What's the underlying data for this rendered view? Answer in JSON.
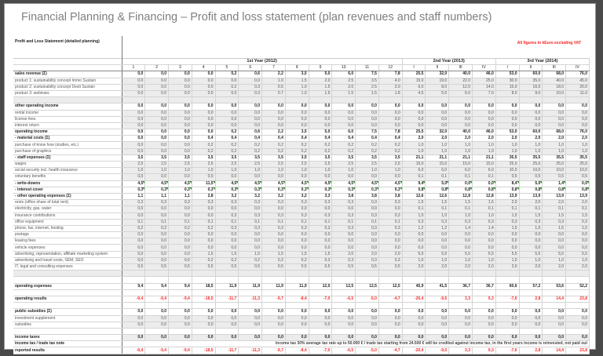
{
  "title": "Financial Planning & Financing – Profit and loss statement (plan revenues and staff numbers)",
  "sheet_heading": "Profit and Loss Statement (detailed planning)",
  "currency_note": "All figures in kEuro excluding VAT",
  "colors": {
    "negative": "#ff2a2a",
    "note": "#ff2020",
    "title": "#808080",
    "cell_gray": "#ececec",
    "flag": "#2a9a2a"
  },
  "years": [
    {
      "label": "1st Year (2012)",
      "columns": [
        "1",
        "2",
        "3",
        "4",
        "5",
        "6",
        "7",
        "8",
        "9",
        "10",
        "11",
        "12"
      ]
    },
    {
      "label": "2nd Year (2013)",
      "columns": [
        "I",
        "II",
        "III",
        "IV"
      ]
    },
    {
      "label": "3rd Year (2014)",
      "columns": [
        "I",
        "II",
        "III",
        "IV"
      ]
    }
  ],
  "rows": [
    {
      "label": "sales revenue (Σ)",
      "style": "bold",
      "values": [
        "0,0",
        "0,0",
        "0,0",
        "0,0",
        "0,2",
        "0,6",
        "2,2",
        "3,5",
        "5,0",
        "6,0",
        "7,5",
        "7,8",
        "25,5",
        "32,0",
        "40,0",
        "46,0",
        "53,0",
        "60,0",
        "68,0",
        "76,0"
      ]
    },
    {
      "label": "product 1: sustainability concept Immo Sustain",
      "style": "sub",
      "values": [
        "0.0",
        "0.0",
        "0.0",
        "0.0",
        "0.0",
        "0.0",
        "1.0",
        "1.5",
        "2.0",
        "2.5",
        "3.5",
        "4.0",
        "15.0",
        "19.0",
        "22.0",
        "25.0",
        "30.0",
        "35.0",
        "40.0",
        "45.0"
      ]
    },
    {
      "label": "product 2: sustainability concept Desti Sustain",
      "style": "sub",
      "values": [
        "0.0",
        "0.0",
        "0.0",
        "0.0",
        "0.2",
        "0.3",
        "0.5",
        "1.0",
        "1.5",
        "2.0",
        "2.5",
        "2.0",
        "6.0",
        "8.0",
        "12.0",
        "14.0",
        "15.0",
        "16.0",
        "18.0",
        "20.0"
      ]
    },
    {
      "label": "product 3: webinars",
      "style": "sub",
      "values": [
        "0.0",
        "0.0",
        "0.0",
        "0.0",
        "0.0",
        "0.3",
        "0.7",
        "1.0",
        "1.5",
        "1.5",
        "1.5",
        "1.8",
        "4.5",
        "5.0",
        "6.0",
        "7.0",
        "8.0",
        "9.0",
        "10.0",
        "11.0"
      ]
    },
    {
      "label": "",
      "style": "blankg",
      "values": []
    },
    {
      "label": "other operating income",
      "style": "bold",
      "values": [
        "0,0",
        "0,0",
        "0,0",
        "0,0",
        "0,0",
        "0,0",
        "0,0",
        "0,0",
        "0,0",
        "0,0",
        "0,0",
        "0,0",
        "0,0",
        "0,0",
        "0,0",
        "0,0",
        "0,0",
        "0,0",
        "0,0",
        "0,0"
      ]
    },
    {
      "label": "rental income",
      "style": "sub",
      "values": [
        "0,0",
        "0,0",
        "0,0",
        "0,0",
        "0,0",
        "0,0",
        "0,0",
        "0,0",
        "0,0",
        "0,0",
        "0,0",
        "0,0",
        "0,0",
        "0,0",
        "0,0",
        "0,0",
        "0,0",
        "0,0",
        "0,0",
        "0,0"
      ]
    },
    {
      "label": "license fees",
      "style": "sub",
      "values": [
        "0,0",
        "0,0",
        "0,0",
        "0,0",
        "0,0",
        "0,0",
        "0,0",
        "0,0",
        "0,0",
        "0,0",
        "0,0",
        "0,0",
        "0,0",
        "0,0",
        "0,0",
        "0,0",
        "0,0",
        "0,0",
        "0,0",
        "0,0"
      ]
    },
    {
      "label": "interest return",
      "style": "sub",
      "values": [
        "0,0",
        "0,0",
        "0,0",
        "0,0",
        "0,0",
        "0,0",
        "0,0",
        "0,0",
        "0,0",
        "0,0",
        "0,0",
        "0,0",
        "0,0",
        "0,0",
        "0,0",
        "0,0",
        "0,0",
        "0,0",
        "0,0",
        "0,0"
      ]
    },
    {
      "label": "operating income",
      "style": "bold total",
      "values": [
        "0,0",
        "0,0",
        "0,0",
        "0,0",
        "0,2",
        "0,6",
        "2,2",
        "3,5",
        "5,0",
        "6,0",
        "7,5",
        "7,8",
        "25,5",
        "32,0",
        "40,0",
        "46,0",
        "53,0",
        "60,0",
        "68,0",
        "76,0"
      ]
    },
    {
      "label": "- material costs (Σ)",
      "style": "bold",
      "values": [
        "0,0",
        "0,0",
        "0,0",
        "0,4",
        "0,4",
        "0,4",
        "0,4",
        "0,4",
        "0,4",
        "0,4",
        "0,4",
        "0,4",
        "2,0",
        "2,0",
        "2,0",
        "2,0",
        "2,0",
        "2,0",
        "2,0",
        "2,0"
      ]
    },
    {
      "label": "purchase of know how (studies, etc.)",
      "style": "sub",
      "values": [
        "0,0",
        "0,0",
        "0,0",
        "0,2",
        "0,2",
        "0,2",
        "0,2",
        "0,2",
        "0,2",
        "0,2",
        "0,2",
        "0,2",
        "1,0",
        "1,0",
        "1,0",
        "1,0",
        "1,0",
        "1,0",
        "1,0",
        "1,0"
      ]
    },
    {
      "label": "purchase of graphics",
      "style": "sub",
      "values": [
        "0,0",
        "0,0",
        "0,0",
        "0,2",
        "0,2",
        "0,2",
        "0,2",
        "0,2",
        "0,2",
        "0,2",
        "0,2",
        "0,2",
        "1,0",
        "1,0",
        "1,0",
        "1,0",
        "1,0",
        "1,0",
        "1,0",
        "1,0"
      ]
    },
    {
      "label": "- staff expenses (Σ)",
      "style": "bold",
      "values": [
        "3,5",
        "3,5",
        "3,5",
        "3,5",
        "3,5",
        "3,5",
        "3,5",
        "3,5",
        "3,5",
        "3,5",
        "3,5",
        "3,5",
        "21,1",
        "21,1",
        "21,1",
        "21,1",
        "35,5",
        "35,5",
        "35,5",
        "35,5"
      ]
    },
    {
      "label": "wages",
      "style": "sub",
      "values": [
        "2,5",
        "2,5",
        "2,5",
        "2,5",
        "2,5",
        "2,5",
        "2,5",
        "2,5",
        "2,5",
        "2,5",
        "2,5",
        "2,5",
        "15,0",
        "15,0",
        "15,0",
        "15,0",
        "25,0",
        "25,0",
        "25,0",
        "25,0"
      ]
    },
    {
      "label": "social security incl. health insurance",
      "style": "sub",
      "values": [
        "1,0",
        "1,0",
        "1,0",
        "1,0",
        "1,0",
        "1,0",
        "1,0",
        "1,0",
        "1,0",
        "1,0",
        "1,0",
        "1,0",
        "6,0",
        "6,0",
        "6,0",
        "6,0",
        "10,0",
        "10,0",
        "10,0",
        "10,0"
      ]
    },
    {
      "label": "voluntary benefits",
      "style": "sub",
      "values": [
        "0,0",
        "0,0",
        "0,0",
        "0,0",
        "0,0",
        "0,0",
        "0,0",
        "0,0",
        "0,0",
        "0,0",
        "0,0",
        "0,0",
        "0,1",
        "0,1",
        "0,1",
        "0,1",
        "0,5",
        "0,5",
        "0,5",
        "0,5"
      ]
    },
    {
      "label": "- write-downs",
      "style": "bold flag",
      "values": [
        "4,5",
        "4,5",
        "4,5",
        "11,5",
        "4,5",
        "4,5",
        "4,5",
        "4,5",
        "4,5",
        "4,5",
        "4,5",
        "4,5",
        "9,4",
        "5,0",
        "0,0",
        "0,0",
        "8,4",
        "5,0",
        "1,4",
        "0,0"
      ]
    },
    {
      "label": "- interest cover",
      "style": "bold flag",
      "values": [
        "0,3",
        "0,3",
        "0,3",
        "0,3",
        "0,3",
        "0,3",
        "0,3",
        "0,3",
        "0,3",
        "0,3",
        "0,3",
        "0,3",
        "0,8",
        "0,8",
        "0,8",
        "0,8",
        "0,8",
        "0,8",
        "0,8",
        "0,8"
      ]
    },
    {
      "label": "- other operating expenses (Σ)",
      "style": "bold",
      "values": [
        "1,1",
        "1,1",
        "1,1",
        "2,8",
        "3,2",
        "3,2",
        "3,2",
        "3,2",
        "3,3",
        "3,8",
        "3,8",
        "3,8",
        "12,6",
        "12,6",
        "12,8",
        "12,8",
        "13,9",
        "13,9",
        "13,9",
        "13,9"
      ]
    },
    {
      "label": "rents (office share of total rent)",
      "style": "sub",
      "values": [
        "0,3",
        "0,3",
        "0,3",
        "0,3",
        "0,3",
        "0,3",
        "0,3",
        "0,3",
        "0,3",
        "0,3",
        "0,3",
        "0,3",
        "1,5",
        "1,5",
        "1,5",
        "1,5",
        "2,0",
        "2,0",
        "2,0",
        "2,0"
      ]
    },
    {
      "label": "electricity, gas, water",
      "style": "sub",
      "values": [
        "0,0",
        "0,0",
        "0,0",
        "0,0",
        "0,0",
        "0,0",
        "0,0",
        "0,0",
        "0,0",
        "0,0",
        "0,0",
        "0,0",
        "0,1",
        "0,1",
        "0,1",
        "0,1",
        "0,1",
        "0,1",
        "0,1",
        "0,1"
      ]
    },
    {
      "label": "insurance contributions",
      "style": "sub",
      "values": [
        "0,0",
        "0,0",
        "0,0",
        "0,0",
        "0,3",
        "0,3",
        "0,3",
        "0,3",
        "0,3",
        "0,3",
        "0,3",
        "0,3",
        "1,0",
        "1,0",
        "1,0",
        "1,0",
        "1,5",
        "1,5",
        "1,5",
        "1,5"
      ]
    },
    {
      "label": "office equipment",
      "style": "sub",
      "values": [
        "0,1",
        "0,1",
        "0,1",
        "0,1",
        "0,1",
        "0,1",
        "0,1",
        "0,1",
        "0,1",
        "0,1",
        "0,1",
        "0,1",
        "0,3",
        "0,3",
        "0,3",
        "0,3",
        "0,3",
        "0,3",
        "0,3",
        "0,3"
      ]
    },
    {
      "label": "phone, fax, internet, hosting",
      "style": "sub",
      "values": [
        "0,2",
        "0,2",
        "0,2",
        "0,2",
        "0,3",
        "0,3",
        "0,3",
        "0,3",
        "0,3",
        "0,3",
        "0,3",
        "0,3",
        "1,2",
        "1,2",
        "1,4",
        "1,4",
        "1,5",
        "1,5",
        "1,5",
        "1,5"
      ]
    },
    {
      "label": "postage",
      "style": "sub",
      "values": [
        "0,0",
        "0,0",
        "0,0",
        "0,0",
        "0,0",
        "0,0",
        "0,0",
        "0,0",
        "0,0",
        "0,0",
        "0,0",
        "0,0",
        "0,0",
        "0,0",
        "0,0",
        "0,0",
        "0,0",
        "0,0",
        "0,0",
        "0,0"
      ]
    },
    {
      "label": "leasing fees",
      "style": "sub",
      "values": [
        "0,0",
        "0,0",
        "0,0",
        "0,0",
        "0,0",
        "0,0",
        "0,0",
        "0,0",
        "0,0",
        "0,0",
        "0,0",
        "0,0",
        "0,0",
        "0,0",
        "0,0",
        "0,0",
        "0,0",
        "0,0",
        "0,0",
        "0,0"
      ]
    },
    {
      "label": "vehicle expenses",
      "style": "sub",
      "values": [
        "0,0",
        "0,0",
        "0,0",
        "0,0",
        "0,0",
        "0,0",
        "0,0",
        "0,0",
        "0,0",
        "0,0",
        "0,0",
        "0,0",
        "0,0",
        "0,0",
        "0,0",
        "0,0",
        "0,0",
        "0,0",
        "0,0",
        "0,0"
      ]
    },
    {
      "label": "advertising, representation, affiliate marketing system",
      "style": "sub",
      "values": [
        "0,0",
        "0,0",
        "0,0",
        "1,5",
        "1,5",
        "1,5",
        "1,5",
        "1,5",
        "1,5",
        "2,0",
        "2,0",
        "2,0",
        "5,5",
        "5,5",
        "5,5",
        "5,5",
        "5,5",
        "5,5",
        "5,5",
        "5,5"
      ]
    },
    {
      "label": "advertising and travel costs, SEM, SEO",
      "style": "sub",
      "values": [
        "0,0",
        "0,0",
        "0,0",
        "0,2",
        "0,2",
        "0,2",
        "0,2",
        "0,2",
        "0,3",
        "0,3",
        "0,3",
        "0,3",
        "1,0",
        "1,0",
        "1,0",
        "1,0",
        "1,0",
        "1,0",
        "1,0",
        "1,0"
      ]
    },
    {
      "label": "IT, legal and consulting expenses",
      "style": "sub",
      "values": [
        "0,5",
        "0,5",
        "0,5",
        "0,5",
        "0,5",
        "0,5",
        "0,5",
        "0,5",
        "0,5",
        "0,5",
        "0,5",
        "0,5",
        "2,0",
        "2,0",
        "2,0",
        "2,0",
        "2,0",
        "2,0",
        "2,0",
        "2,0"
      ]
    },
    {
      "label": "",
      "style": "blankg",
      "values": []
    },
    {
      "label": "",
      "style": "blank",
      "values": []
    },
    {
      "label": "operating expenses",
      "style": "bold total",
      "values": [
        "9,4",
        "9,4",
        "9,4",
        "18,5",
        "11,9",
        "11,9",
        "11,9",
        "11,9",
        "12,0",
        "12,5",
        "12,5",
        "12,5",
        "45,9",
        "41,5",
        "36,7",
        "36,7",
        "60,6",
        "57,2",
        "53,6",
        "52,2"
      ]
    },
    {
      "label": "",
      "style": "blank",
      "values": []
    },
    {
      "label": "operating results",
      "style": "bold total red",
      "values": [
        "-9,4",
        "-9,4",
        "-9,4",
        "-18,5",
        "-11,7",
        "-11,3",
        "-9,7",
        "-8,4",
        "-7,0",
        "-6,5",
        "-5,0",
        "-4,7",
        "-20,4",
        "-9,5",
        "3,3",
        "9,3",
        "-7,6",
        "2,8",
        "14,4",
        "23,8"
      ]
    },
    {
      "label": "",
      "style": "blank",
      "values": []
    },
    {
      "label": "public subsidies (Σ)",
      "style": "bold",
      "values": [
        "0,0",
        "0,0",
        "0,0",
        "0,0",
        "0,0",
        "0,0",
        "0,0",
        "0,0",
        "0,0",
        "0,0",
        "0,0",
        "0,0",
        "0,0",
        "0,0",
        "0,0",
        "0,0",
        "0,0",
        "0,0",
        "0,0",
        "0,0"
      ]
    },
    {
      "label": "investment supplement",
      "style": "sub",
      "values": [
        "0,0",
        "0,0",
        "0,0",
        "0,0",
        "0,0",
        "0,0",
        "0,0",
        "0,0",
        "0,0",
        "0,0",
        "0,0",
        "0,0",
        "0,0",
        "0,0",
        "0,0",
        "0,0",
        "0,0",
        "0,0",
        "0,0",
        "0,0"
      ]
    },
    {
      "label": "subsidies",
      "style": "sub",
      "values": [
        "0,0",
        "0,0",
        "0,0",
        "0,0",
        "0,0",
        "0,0",
        "0,0",
        "0,0",
        "0,0",
        "0,0",
        "0,0",
        "0,0",
        "0,0",
        "0,0",
        "0,0",
        "0,0",
        "0,0",
        "0,0",
        "0,0",
        "0,0"
      ]
    },
    {
      "label": "",
      "style": "blank",
      "values": []
    },
    {
      "label": "income taxes",
      "style": "bold sub-bg",
      "values": [
        "0,0",
        "0,0",
        "0,0",
        "0,0",
        "0,0",
        "0,0",
        "0,0",
        "0,0",
        "0,0",
        "0,0",
        "0,0",
        "0,0",
        "0,0",
        "0,0",
        "0,0",
        "0,0",
        "0,0",
        "0,0",
        "0,0",
        "0,0"
      ]
    },
    {
      "label": "income tax / trade tax note",
      "style": "bold notec",
      "note": "income tax 30%  average tax rate up to 50.000 € / trade tax starting from 24.500 € will be credited against income tax, in the first years income is reinvested, not paid out",
      "values": []
    },
    {
      "label": "reported results",
      "style": "bold total red",
      "values": [
        "-9,4",
        "-9,4",
        "-9,4",
        "-18,5",
        "-11,7",
        "-11,3",
        "-9,7",
        "-8,4",
        "-7,0",
        "-6,5",
        "-5,0",
        "-4,7",
        "-20,4",
        "-9,5",
        "3,3",
        "9,3",
        "-7,6",
        "2,8",
        "14,4",
        "23,8"
      ]
    }
  ]
}
